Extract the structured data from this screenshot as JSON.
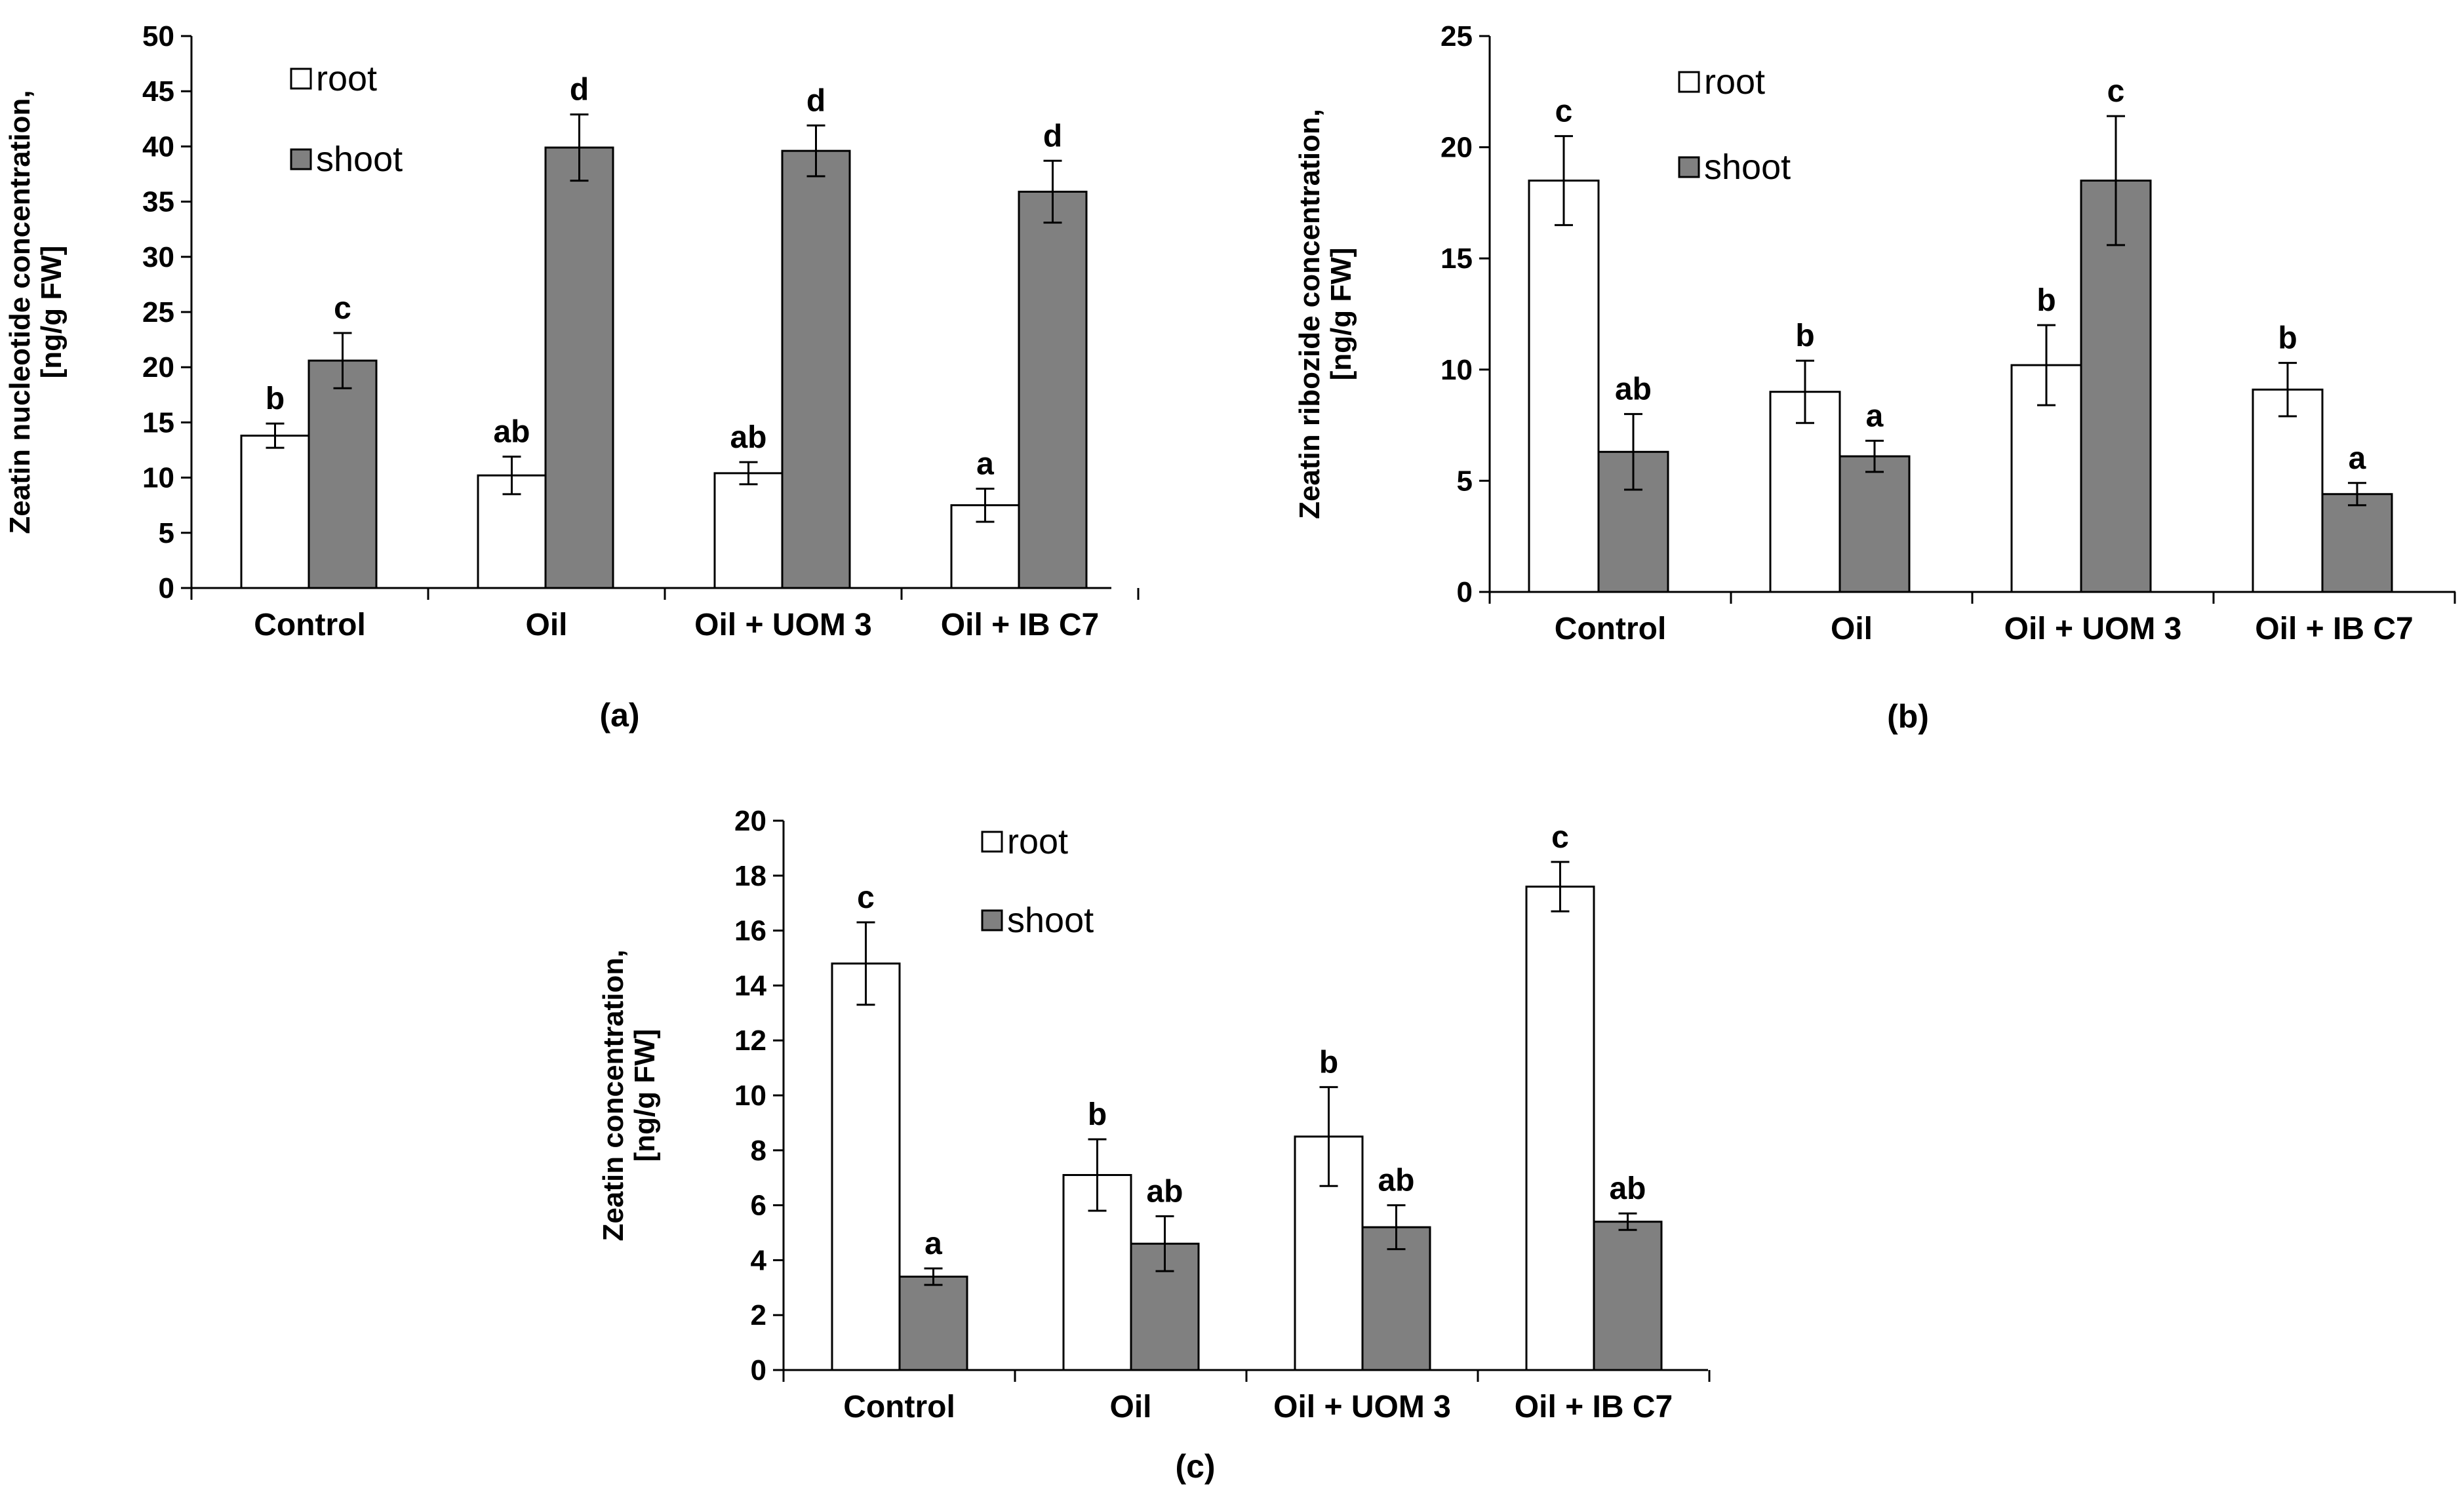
{
  "colors": {
    "root": "#ffffff",
    "shoot": "#808080",
    "stroke": "#000000"
  },
  "legend": {
    "root": "root",
    "shoot": "shoot"
  },
  "chart_data": [
    {
      "type": "bar",
      "panel": "(a)",
      "ylabel_line1": "Zeatin nucleotide concentration,",
      "ylabel_line2": "[ng/g FW]",
      "categories": [
        "Control",
        "Oil",
        "Oil + UOM 3",
        "Oil + IB C7"
      ],
      "ylim": [
        0,
        50
      ],
      "ticks": [
        0,
        5,
        10,
        15,
        20,
        25,
        30,
        35,
        40,
        45,
        50
      ],
      "series": [
        {
          "name": "root",
          "values": [
            13.8,
            10.2,
            10.4,
            7.5
          ],
          "errors": [
            1.1,
            1.7,
            1.0,
            1.5
          ],
          "labels": [
            "b",
            "ab",
            "ab",
            "a"
          ]
        },
        {
          "name": "shoot",
          "values": [
            20.6,
            39.9,
            39.6,
            35.9
          ],
          "errors": [
            2.5,
            3.0,
            2.3,
            2.8
          ],
          "labels": [
            "c",
            "d",
            "d",
            "d"
          ]
        }
      ]
    },
    {
      "type": "bar",
      "panel": "(b)",
      "ylabel_line1": "Zeatin ribozide concentration,",
      "ylabel_line2": "[ng/g FW]",
      "categories": [
        "Control",
        "Oil",
        "Oil + UOM 3",
        "Oil + IB C7"
      ],
      "ylim": [
        0,
        25
      ],
      "ticks": [
        0,
        5,
        10,
        15,
        20,
        25
      ],
      "series": [
        {
          "name": "root",
          "values": [
            18.5,
            9.0,
            10.2,
            9.1
          ],
          "errors": [
            2.0,
            1.4,
            1.8,
            1.2
          ],
          "labels": [
            "c",
            "b",
            "b",
            "b"
          ]
        },
        {
          "name": "shoot",
          "values": [
            6.3,
            6.1,
            18.5,
            4.4
          ],
          "errors": [
            1.7,
            0.7,
            2.9,
            0.5
          ],
          "labels": [
            "ab",
            "a",
            "c",
            "a"
          ]
        }
      ]
    },
    {
      "type": "bar",
      "panel": "(c)",
      "ylabel_line1": "Zeatin concentration,",
      "ylabel_line2": "[ng/g FW]",
      "categories": [
        "Control",
        "Oil",
        "Oil + UOM 3",
        "Oil + IB C7"
      ],
      "ylim": [
        0,
        20
      ],
      "ticks": [
        0,
        2,
        4,
        6,
        8,
        10,
        12,
        14,
        16,
        18,
        20
      ],
      "series": [
        {
          "name": "root",
          "values": [
            14.8,
            7.1,
            8.5,
            17.6
          ],
          "errors": [
            1.5,
            1.3,
            1.8,
            0.9
          ],
          "labels": [
            "c",
            "b",
            "b",
            "c"
          ]
        },
        {
          "name": "shoot",
          "values": [
            3.4,
            4.6,
            5.2,
            5.4
          ],
          "errors": [
            0.3,
            1.0,
            0.8,
            0.3
          ],
          "labels": [
            "a",
            "ab",
            "ab",
            "ab"
          ]
        }
      ]
    }
  ]
}
